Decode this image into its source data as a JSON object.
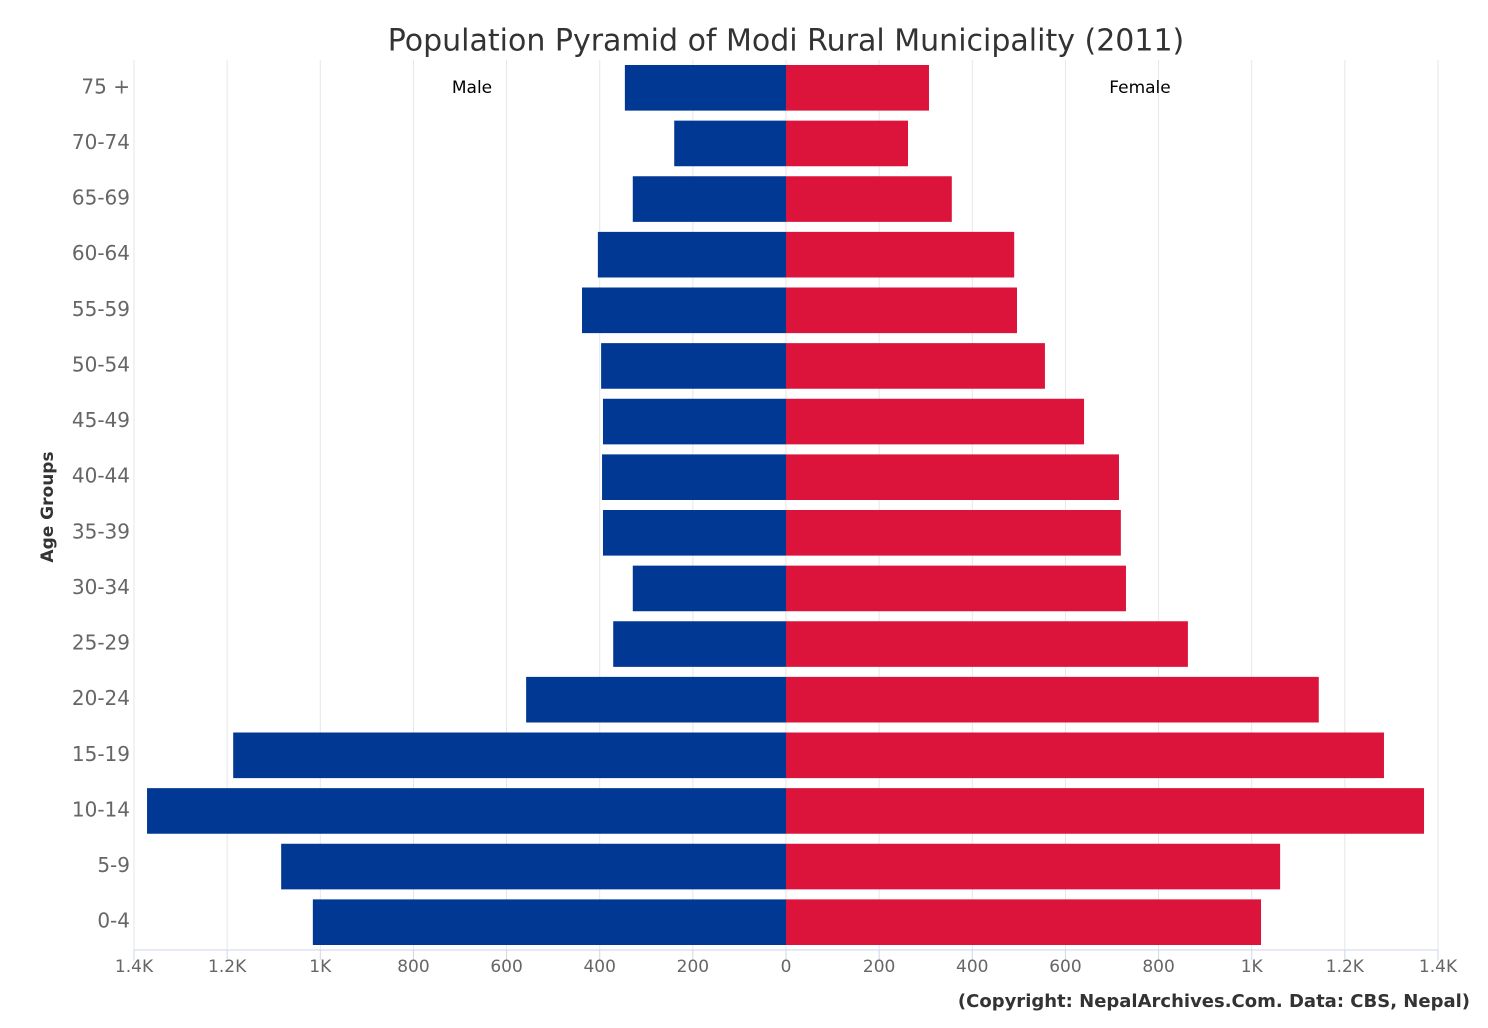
{
  "chart_data": {
    "type": "pyramid",
    "title": "Population Pyramid of Modi Rural Municipality (2011)",
    "y_axis_label": "Age Groups",
    "credits": "(Copyright: NepalArchives.Com. Data: CBS, Nepal)",
    "categories": [
      "75 +",
      "70-74",
      "65-69",
      "60-64",
      "55-59",
      "50-54",
      "45-49",
      "40-44",
      "35-39",
      "30-34",
      "25-29",
      "20-24",
      "15-19",
      "10-14",
      "5-9",
      "0-4"
    ],
    "series": [
      {
        "name": "Male",
        "color": "#003894",
        "values": [
          -346,
          -240,
          -329,
          -404,
          -438,
          -397,
          -393,
          -395,
          -393,
          -329,
          -371,
          -558,
          -1187,
          -1372,
          -1084,
          -1016
        ]
      },
      {
        "name": "Female",
        "color": "#dc143c",
        "values": [
          307,
          262,
          356,
          490,
          496,
          556,
          640,
          715,
          719,
          730,
          863,
          1144,
          1284,
          1370,
          1061,
          1020
        ]
      }
    ],
    "xlim": [
      -1400,
      1400
    ],
    "xticks": [
      {
        "value": -1400,
        "label": "1.4K"
      },
      {
        "value": -1200,
        "label": "1.2K"
      },
      {
        "value": -1000,
        "label": "1K"
      },
      {
        "value": -800,
        "label": "800"
      },
      {
        "value": -600,
        "label": "600"
      },
      {
        "value": -400,
        "label": "400"
      },
      {
        "value": -200,
        "label": "200"
      },
      0,
      200,
      400,
      600,
      800,
      {
        "value": 1000,
        "label": "1K"
      },
      {
        "value": 1200,
        "label": "1.2K"
      },
      {
        "value": 1400,
        "label": "1.4K"
      }
    ],
    "grid": true
  }
}
